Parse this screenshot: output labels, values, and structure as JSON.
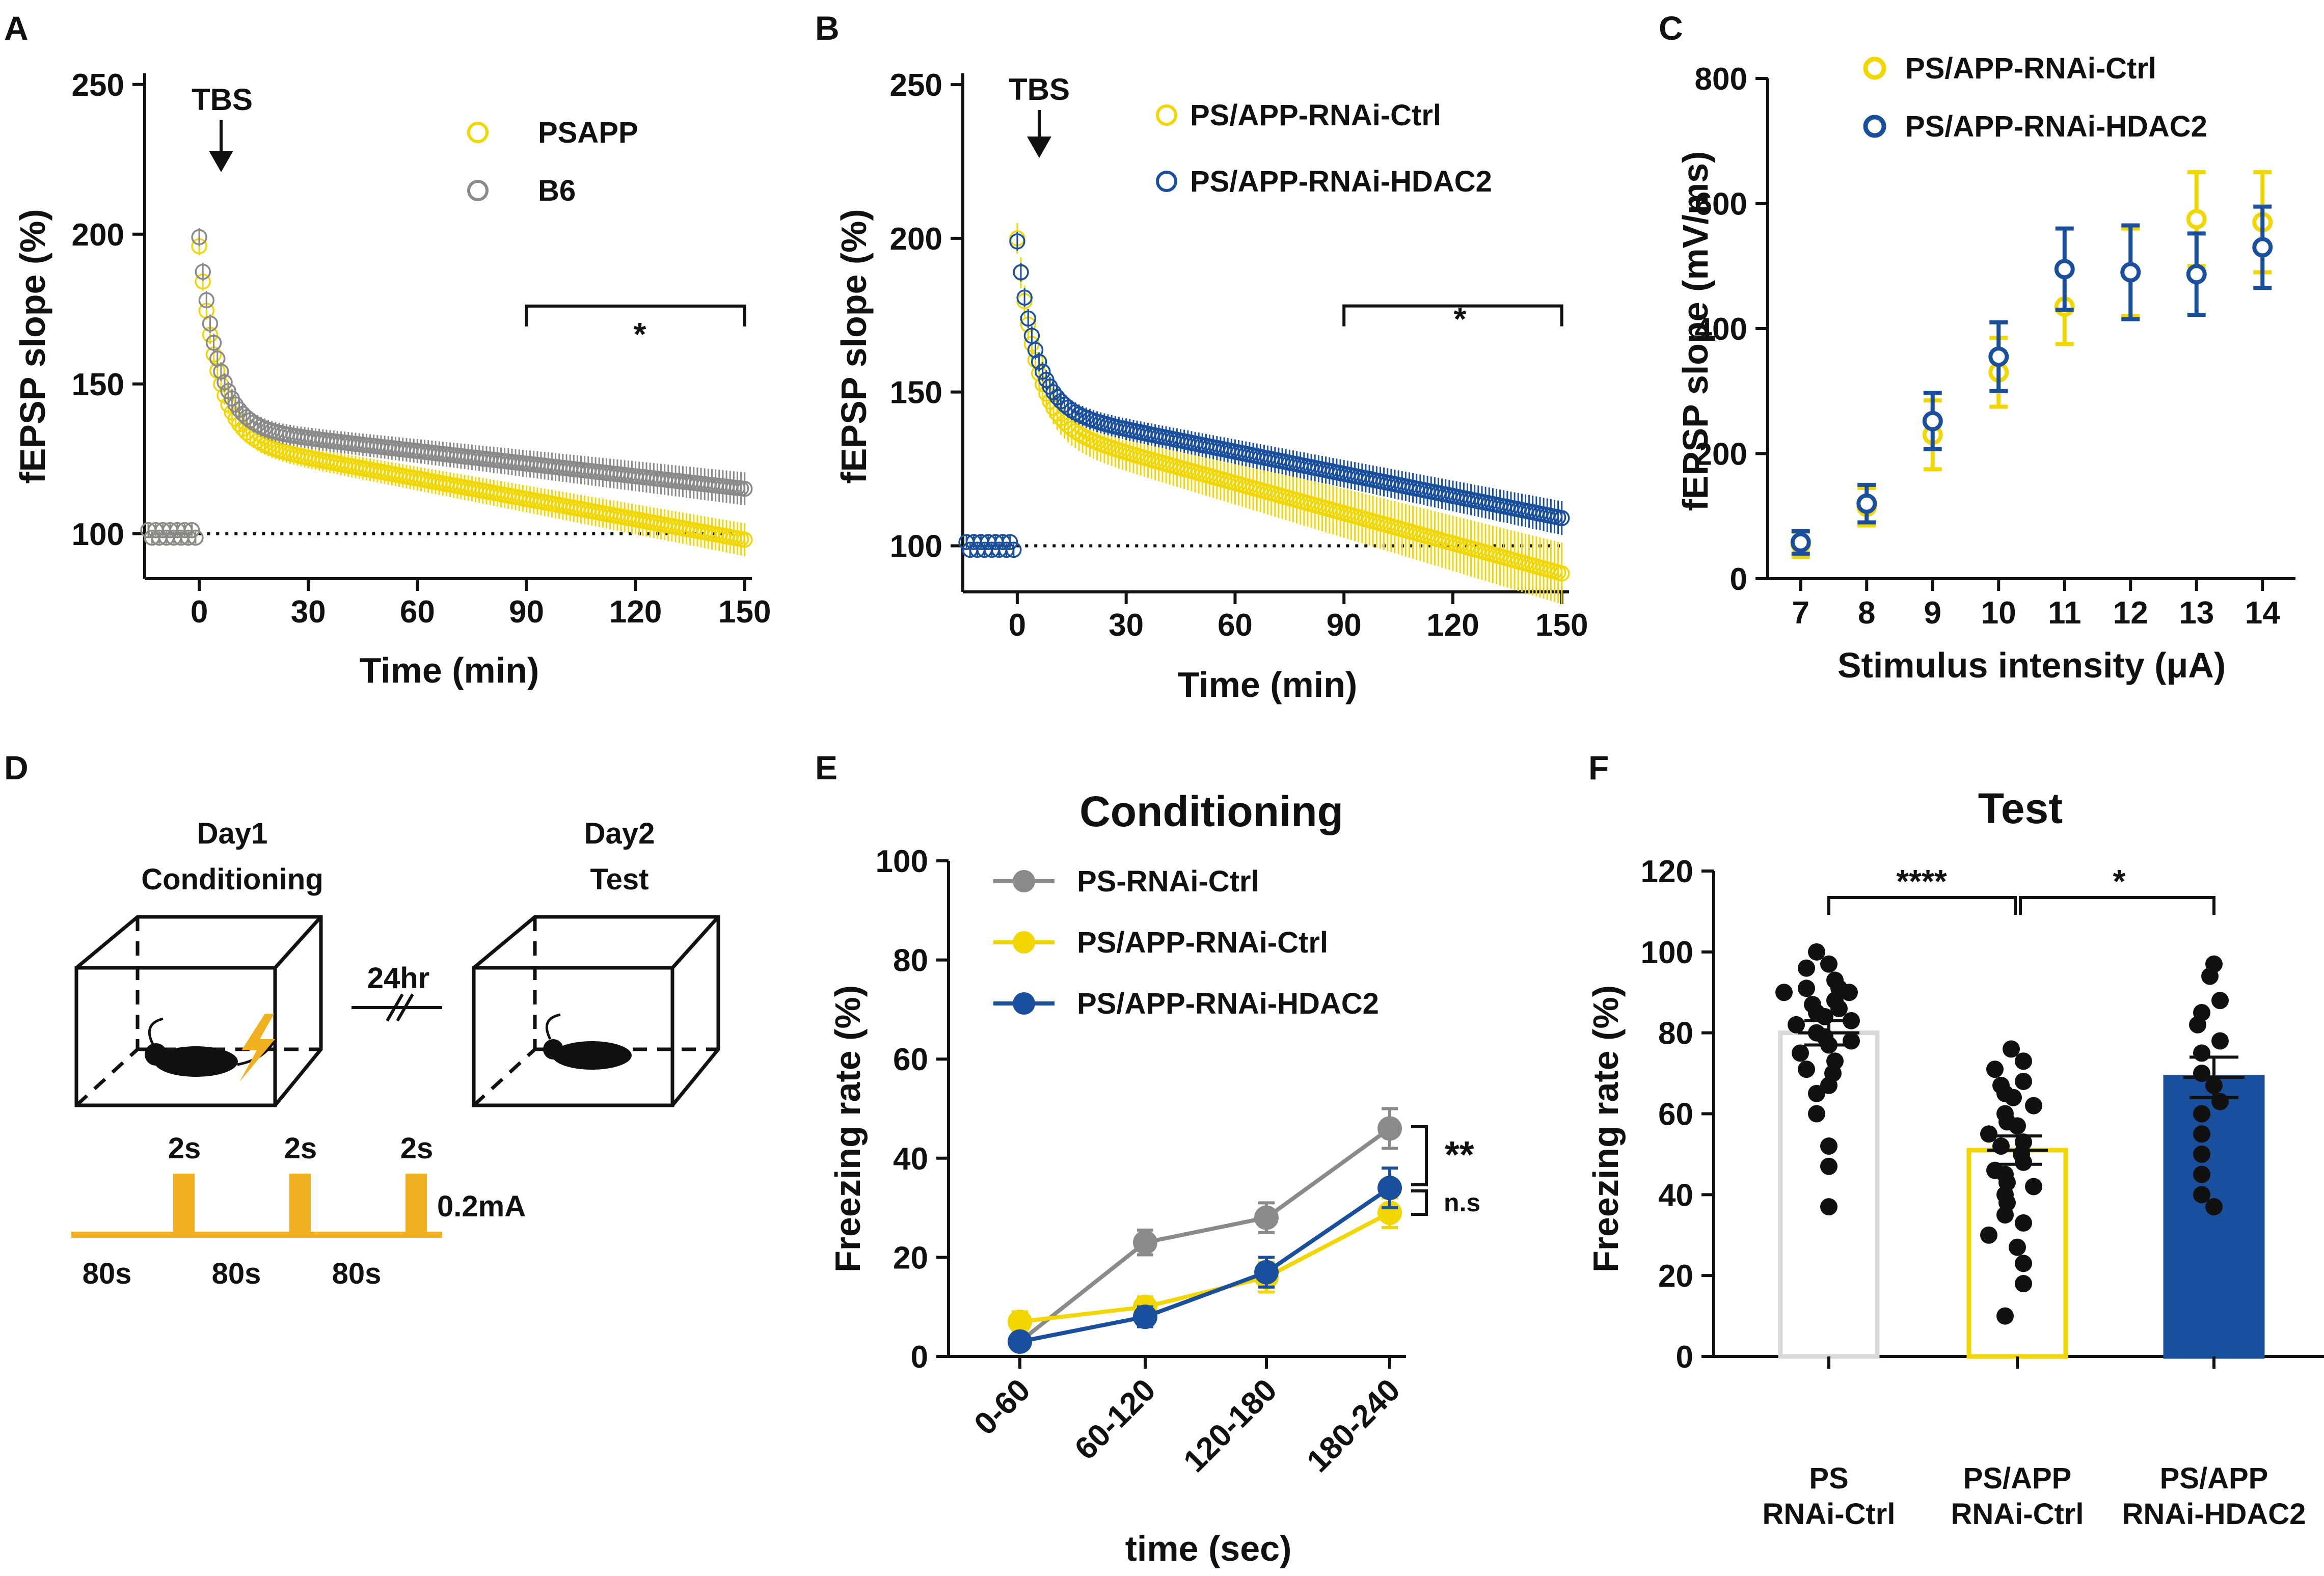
{
  "colors": {
    "yellow": "#f2d600",
    "gray": "#8a8a8a",
    "blue": "#1a4f9e",
    "orange": "#f0b020",
    "black": "#111111"
  },
  "chart_data": [
    {
      "id": "A",
      "type": "scatter",
      "panel_label": "A",
      "xlabel": "Time (min)",
      "ylabel": "fEPSP slope (%)",
      "xlim": [
        -15,
        152
      ],
      "ylim": [
        85,
        252
      ],
      "xticks": [
        0,
        30,
        60,
        90,
        120,
        150
      ],
      "yticks": [
        100,
        150,
        200,
        250
      ],
      "annotation": "TBS",
      "bracket": {
        "x": [
          90,
          150
        ],
        "label": "*"
      },
      "series": [
        {
          "name": "PSAPP",
          "color": "#f2d600",
          "baseline": 100,
          "peak": 196,
          "plateau": 132,
          "end": 98
        },
        {
          "name": "B6",
          "color": "#8a8a8a",
          "baseline": 100,
          "peak": 199,
          "plateau": 136,
          "end": 115
        }
      ]
    },
    {
      "id": "B",
      "type": "scatter",
      "panel_label": "B",
      "xlabel": "Time (min)",
      "ylabel": "fEPSP slope (%)",
      "xlim": [
        -15,
        152
      ],
      "ylim": [
        85,
        252
      ],
      "xticks": [
        0,
        30,
        60,
        90,
        120,
        150
      ],
      "yticks": [
        100,
        150,
        200,
        250
      ],
      "annotation": "TBS",
      "bracket": {
        "x": [
          90,
          150
        ],
        "label": "*"
      },
      "series": [
        {
          "name": "PS/APP-RNAi-Ctrl",
          "color": "#f2d600",
          "baseline": 100,
          "peak": 200,
          "plateau": 140,
          "end": 91
        },
        {
          "name": "PS/APP-RNAi-HDAC2",
          "color": "#1a4f9e",
          "baseline": 100,
          "peak": 199,
          "plateau": 145,
          "end": 109
        }
      ]
    },
    {
      "id": "C",
      "type": "scatter",
      "panel_label": "C",
      "xlabel": "Stimulus intensity (μA)",
      "ylabel": "fEPSP slope (mV/ms)",
      "xlim": [
        6.5,
        14.5
      ],
      "ylim": [
        0,
        800
      ],
      "xticks": [
        7,
        8,
        9,
        10,
        11,
        12,
        13,
        14
      ],
      "yticks": [
        0,
        200,
        400,
        600,
        800
      ],
      "categories": [
        7,
        8,
        9,
        10,
        11,
        12,
        13,
        14
      ],
      "series": [
        {
          "name": "PS/APP-RNAi-Ctrl",
          "color": "#f2d600",
          "values": [
            55,
            115,
            230,
            330,
            435,
            490,
            575,
            570
          ],
          "errors": [
            20,
            30,
            55,
            55,
            60,
            70,
            75,
            80
          ]
        },
        {
          "name": "PS/APP-RNAi-HDAC2",
          "color": "#1a4f9e",
          "values": [
            58,
            120,
            252,
            355,
            495,
            490,
            487,
            530
          ],
          "errors": [
            18,
            30,
            45,
            55,
            65,
            75,
            65,
            65
          ]
        }
      ]
    },
    {
      "id": "E",
      "type": "line",
      "panel_label": "E",
      "title": "Conditioning",
      "xlabel": "time (sec)",
      "ylabel": "Freezing rate (%)",
      "ylim": [
        0,
        100
      ],
      "yticks": [
        0,
        20,
        40,
        60,
        80,
        100
      ],
      "categories": [
        "0-60",
        "60-120",
        "120-180",
        "180-240"
      ],
      "series": [
        {
          "name": "PS-RNAi-Ctrl",
          "color": "#8a8a8a",
          "values": [
            3,
            23,
            28,
            46
          ],
          "errors": [
            1.5,
            2.5,
            3,
            4
          ]
        },
        {
          "name": "PS/APP-RNAi-Ctrl",
          "color": "#f2d600",
          "values": [
            7,
            10,
            16,
            29
          ],
          "errors": [
            2,
            2,
            3,
            3
          ]
        },
        {
          "name": "PS/APP-RNAi-HDAC2",
          "color": "#1a4f9e",
          "values": [
            3,
            8,
            17,
            34
          ],
          "errors": [
            1,
            2,
            3,
            4
          ]
        }
      ],
      "significance": [
        {
          "label": "**"
        },
        {
          "label": "n.s"
        }
      ]
    },
    {
      "id": "F",
      "type": "bar",
      "panel_label": "F",
      "title": "Test",
      "xlabel": "",
      "ylabel": "Freezing rate (%)",
      "ylim": [
        0,
        120
      ],
      "yticks": [
        0,
        20,
        40,
        60,
        80,
        100,
        120
      ],
      "categories": [
        {
          "line1": "PS",
          "line2": "RNAi-Ctrl"
        },
        {
          "line1": "PS/APP",
          "line2": "RNAi-Ctrl"
        },
        {
          "line1": "PS/APP",
          "line2": "RNAi-HDAC2"
        }
      ],
      "values": [
        80,
        51,
        69
      ],
      "errors": [
        3,
        3.5,
        5
      ],
      "bar_colors": [
        {
          "fill": "#ffffff",
          "stroke": "#d9d9d9"
        },
        {
          "fill": "#ffffff",
          "stroke": "#f2d600"
        },
        {
          "fill": "#1a4f9e",
          "stroke": "#1a4f9e"
        }
      ],
      "points": [
        [
          100,
          97,
          96,
          93,
          91,
          91,
          90,
          90,
          88,
          87,
          86,
          85,
          84,
          83,
          82,
          80,
          79,
          78,
          77,
          75,
          73,
          71,
          70,
          67,
          65,
          60,
          52,
          47,
          37
        ],
        [
          76,
          73,
          71,
          68,
          67,
          65,
          64,
          62,
          60,
          58,
          57,
          55,
          53,
          52,
          50,
          48,
          46,
          45,
          43,
          42,
          40,
          38,
          35,
          33,
          30,
          27,
          23,
          18,
          10
        ],
        [
          97,
          94,
          88,
          85,
          82,
          78,
          75,
          70,
          67,
          63,
          60,
          55,
          50,
          45,
          40,
          37
        ]
      ],
      "comparisons": [
        {
          "from": 0,
          "to": 1,
          "label": "****"
        },
        {
          "from": 1,
          "to": 2,
          "label": "*"
        }
      ]
    }
  ],
  "panel_d": {
    "panel_label": "D",
    "day1_line1": "Day1",
    "day1_line2": "Conditioning",
    "day2_line1": "Day2",
    "day2_line2": "Test",
    "interval": "24hr",
    "pulse_label": "2s",
    "current": "0.2mA",
    "gap_label": "80s"
  }
}
